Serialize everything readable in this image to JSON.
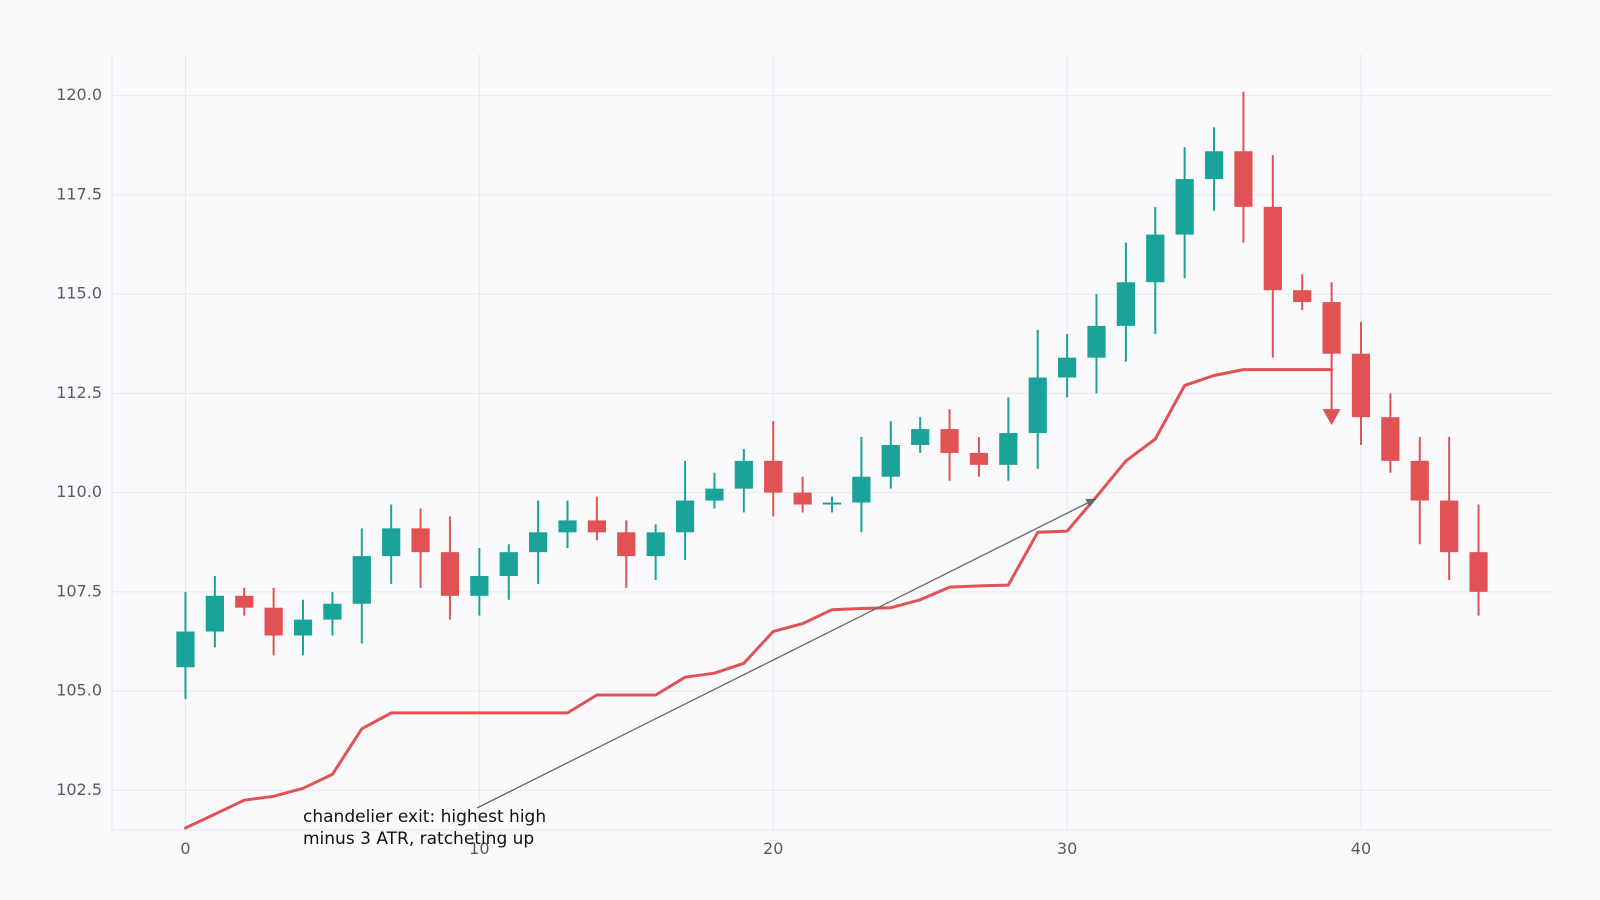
{
  "chart_data": {
    "type": "candlestick",
    "title": "",
    "xlabel": "",
    "ylabel": "",
    "xlim": [
      -2.5,
      46.5
    ],
    "ylim": [
      101.5,
      121.05
    ],
    "grid": true,
    "x_ticks": [
      0,
      10,
      20,
      30,
      40
    ],
    "y_ticks": [
      102.5,
      105.0,
      107.5,
      110.0,
      112.5,
      115.0,
      117.5,
      120.0
    ],
    "colors": {
      "up": "#1aa39a",
      "down": "#e05253",
      "line": "#e05253",
      "grid": "#e8e8ee",
      "arrow": "#666666"
    },
    "candles": [
      {
        "x": 0,
        "open": 105.6,
        "high": 107.5,
        "low": 104.8,
        "close": 106.5
      },
      {
        "x": 1,
        "open": 106.5,
        "high": 107.9,
        "low": 106.1,
        "close": 107.4
      },
      {
        "x": 2,
        "open": 107.4,
        "high": 107.6,
        "low": 106.9,
        "close": 107.1
      },
      {
        "x": 3,
        "open": 107.1,
        "high": 107.6,
        "low": 105.9,
        "close": 106.4
      },
      {
        "x": 4,
        "open": 106.4,
        "high": 107.3,
        "low": 105.9,
        "close": 106.8
      },
      {
        "x": 5,
        "open": 106.8,
        "high": 107.5,
        "low": 106.4,
        "close": 107.2
      },
      {
        "x": 6,
        "open": 107.2,
        "high": 109.1,
        "low": 106.2,
        "close": 108.4
      },
      {
        "x": 7,
        "open": 108.4,
        "high": 109.7,
        "low": 107.7,
        "close": 109.1
      },
      {
        "x": 8,
        "open": 109.1,
        "high": 109.6,
        "low": 107.6,
        "close": 108.5
      },
      {
        "x": 9,
        "open": 108.5,
        "high": 109.4,
        "low": 106.8,
        "close": 107.4
      },
      {
        "x": 10,
        "open": 107.4,
        "high": 108.6,
        "low": 106.9,
        "close": 107.9
      },
      {
        "x": 11,
        "open": 107.9,
        "high": 108.7,
        "low": 107.3,
        "close": 108.5
      },
      {
        "x": 12,
        "open": 108.5,
        "high": 109.8,
        "low": 107.7,
        "close": 109.0
      },
      {
        "x": 13,
        "open": 109.0,
        "high": 109.8,
        "low": 108.6,
        "close": 109.3
      },
      {
        "x": 14,
        "open": 109.3,
        "high": 109.9,
        "low": 108.8,
        "close": 109.0
      },
      {
        "x": 15,
        "open": 109.0,
        "high": 109.3,
        "low": 107.6,
        "close": 108.4
      },
      {
        "x": 16,
        "open": 108.4,
        "high": 109.2,
        "low": 107.8,
        "close": 109.0
      },
      {
        "x": 17,
        "open": 109.0,
        "high": 110.8,
        "low": 108.3,
        "close": 109.8
      },
      {
        "x": 18,
        "open": 109.8,
        "high": 110.5,
        "low": 109.6,
        "close": 110.1
      },
      {
        "x": 19,
        "open": 110.1,
        "high": 111.1,
        "low": 109.5,
        "close": 110.8
      },
      {
        "x": 20,
        "open": 110.8,
        "high": 111.8,
        "low": 109.4,
        "close": 110.0
      },
      {
        "x": 21,
        "open": 110.0,
        "high": 110.4,
        "low": 109.5,
        "close": 109.7
      },
      {
        "x": 22,
        "open": 109.7,
        "high": 109.9,
        "low": 109.5,
        "close": 109.75
      },
      {
        "x": 23,
        "open": 109.75,
        "high": 111.4,
        "low": 109.0,
        "close": 110.4
      },
      {
        "x": 24,
        "open": 110.4,
        "high": 111.8,
        "low": 110.1,
        "close": 111.2
      },
      {
        "x": 25,
        "open": 111.2,
        "high": 111.9,
        "low": 111.0,
        "close": 111.6
      },
      {
        "x": 26,
        "open": 111.6,
        "high": 112.1,
        "low": 110.3,
        "close": 111.0
      },
      {
        "x": 27,
        "open": 111.0,
        "high": 111.4,
        "low": 110.4,
        "close": 110.7
      },
      {
        "x": 28,
        "open": 110.7,
        "high": 112.4,
        "low": 110.3,
        "close": 111.5
      },
      {
        "x": 29,
        "open": 111.5,
        "high": 114.1,
        "low": 110.6,
        "close": 112.9
      },
      {
        "x": 30,
        "open": 112.9,
        "high": 114.0,
        "low": 112.4,
        "close": 113.4
      },
      {
        "x": 31,
        "open": 113.4,
        "high": 115.0,
        "low": 112.5,
        "close": 114.2
      },
      {
        "x": 32,
        "open": 114.2,
        "high": 116.3,
        "low": 113.3,
        "close": 115.3
      },
      {
        "x": 33,
        "open": 115.3,
        "high": 117.2,
        "low": 114.0,
        "close": 116.5
      },
      {
        "x": 34,
        "open": 116.5,
        "high": 118.7,
        "low": 115.4,
        "close": 117.9
      },
      {
        "x": 35,
        "open": 117.9,
        "high": 119.2,
        "low": 117.1,
        "close": 118.6
      },
      {
        "x": 36,
        "open": 118.6,
        "high": 120.1,
        "low": 116.3,
        "close": 117.2
      },
      {
        "x": 37,
        "open": 117.2,
        "high": 118.5,
        "low": 113.4,
        "close": 115.1
      },
      {
        "x": 38,
        "open": 115.1,
        "high": 115.5,
        "low": 114.6,
        "close": 114.8
      },
      {
        "x": 39,
        "open": 114.8,
        "high": 115.3,
        "low": 112.9,
        "close": 113.5
      },
      {
        "x": 40,
        "open": 113.5,
        "high": 114.3,
        "low": 111.2,
        "close": 111.9
      },
      {
        "x": 41,
        "open": 111.9,
        "high": 112.5,
        "low": 110.5,
        "close": 110.8
      },
      {
        "x": 42,
        "open": 110.8,
        "high": 111.4,
        "low": 108.7,
        "close": 109.8
      },
      {
        "x": 43,
        "open": 109.8,
        "high": 111.4,
        "low": 107.8,
        "close": 108.5
      },
      {
        "x": 44,
        "open": 108.5,
        "high": 109.7,
        "low": 106.9,
        "close": 107.5
      }
    ],
    "chandelier_exit": {
      "x": [
        0,
        1,
        2,
        3,
        4,
        5,
        6,
        7,
        8,
        9,
        10,
        11,
        12,
        13,
        14,
        15,
        16,
        17,
        18,
        19,
        20,
        21,
        22,
        23,
        24,
        25,
        26,
        27,
        28,
        29,
        30,
        31,
        32,
        33,
        34,
        35,
        36,
        37,
        38,
        39
      ],
      "values": [
        101.55,
        101.9,
        102.25,
        102.35,
        102.55,
        102.9,
        104.05,
        104.45,
        104.45,
        104.45,
        104.45,
        104.45,
        104.45,
        104.45,
        104.9,
        104.9,
        104.9,
        105.35,
        105.45,
        105.7,
        106.5,
        106.7,
        107.05,
        107.08,
        107.1,
        107.3,
        107.62,
        107.65,
        107.67,
        109.0,
        109.03,
        109.9,
        110.8,
        111.35,
        112.7,
        112.95,
        113.1,
        113.1,
        113.1,
        113.1
      ]
    },
    "exit_signal": {
      "x": 39,
      "y": 111.7
    },
    "annotation": {
      "lines": [
        "chandelier exit: highest high",
        "minus 3 ATR, ratcheting up"
      ],
      "target_x": 31.0,
      "target_y": 109.85
    }
  }
}
